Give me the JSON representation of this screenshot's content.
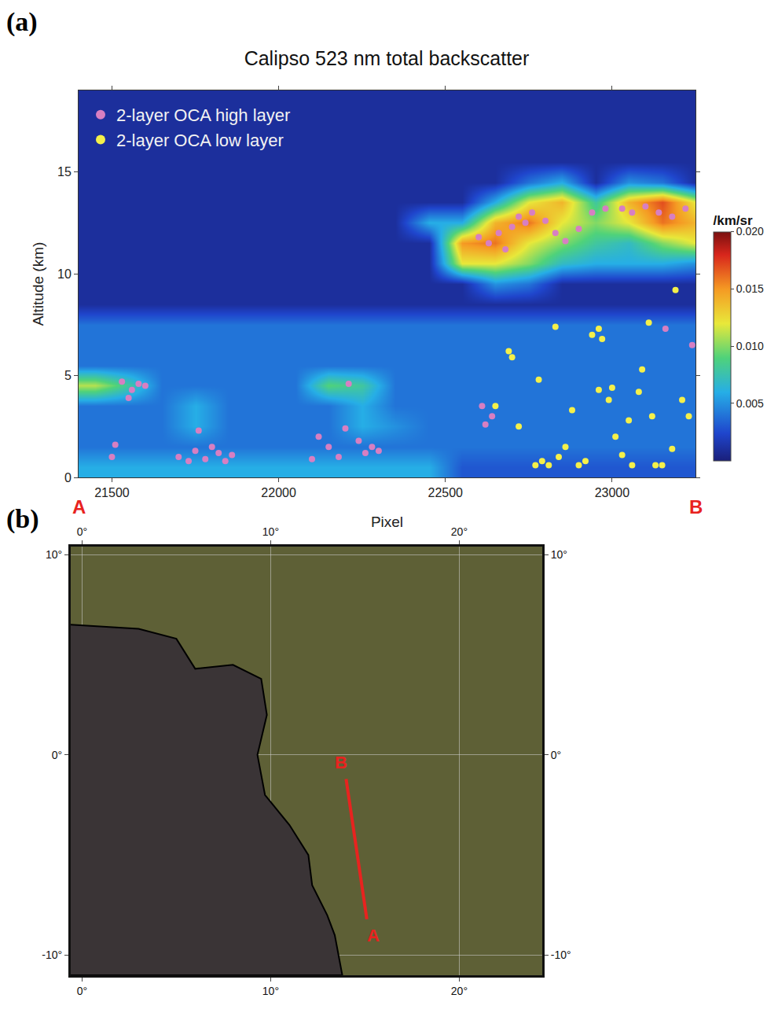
{
  "chart_data": [
    {
      "type": "heatmap",
      "panel": "(a)",
      "title": "Calipso 523 nm total backscatter",
      "xlabel": "Pixel",
      "ylabel": "Altitude (km)",
      "xlim": [
        21400,
        23250
      ],
      "xticks": [
        21500,
        22000,
        22500,
        23000
      ],
      "ylim": [
        0,
        19
      ],
      "yticks": [
        0,
        5,
        10,
        15
      ],
      "x_end_labels": [
        "A",
        "B"
      ],
      "grid": false,
      "legend": "top left",
      "heatmap": {
        "x": [
          21450,
          21550,
          21650,
          21750,
          21850,
          21950,
          22050,
          22150,
          22250,
          22350,
          22450,
          22550,
          22650,
          22750,
          22850,
          22950,
          23050,
          23150,
          23250
        ],
        "y": [
          0.5,
          1.5,
          2.5,
          3.5,
          4.5,
          5.5,
          6.5,
          7.5,
          8.5,
          9.5,
          10.5,
          11.5,
          12.5,
          13.5,
          14.5,
          15.5,
          16.5,
          17.5,
          18.5
        ],
        "z": [
          [
            0.006,
            0.006,
            0.006,
            0.006,
            0.006,
            0.006,
            0.006,
            0.006,
            0.006,
            0.006,
            0.006,
            0.003,
            0.003,
            0.003,
            0.003,
            0.003,
            0.003,
            0.003,
            0.003
          ],
          [
            0.004,
            0.004,
            0.004,
            0.004,
            0.004,
            0.004,
            0.004,
            0.004,
            0.004,
            0.004,
            0.004,
            0.004,
            0.004,
            0.004,
            0.004,
            0.004,
            0.004,
            0.004,
            0.004
          ],
          [
            0.004,
            0.004,
            0.004,
            0.006,
            0.004,
            0.004,
            0.004,
            0.004,
            0.006,
            0.005,
            0.004,
            0.004,
            0.004,
            0.004,
            0.004,
            0.004,
            0.004,
            0.004,
            0.004
          ],
          [
            0.004,
            0.004,
            0.004,
            0.006,
            0.004,
            0.004,
            0.004,
            0.004,
            0.006,
            0.004,
            0.004,
            0.004,
            0.004,
            0.004,
            0.004,
            0.004,
            0.004,
            0.004,
            0.004
          ],
          [
            0.011,
            0.008,
            0.004,
            0.004,
            0.004,
            0.004,
            0.004,
            0.009,
            0.008,
            0.004,
            0.004,
            0.004,
            0.004,
            0.004,
            0.004,
            0.004,
            0.004,
            0.004,
            0.004
          ],
          [
            0.004,
            0.004,
            0.004,
            0.004,
            0.004,
            0.004,
            0.004,
            0.004,
            0.004,
            0.004,
            0.004,
            0.004,
            0.004,
            0.004,
            0.004,
            0.004,
            0.004,
            0.004,
            0.004
          ],
          [
            0.004,
            0.004,
            0.004,
            0.004,
            0.004,
            0.004,
            0.004,
            0.004,
            0.004,
            0.004,
            0.004,
            0.004,
            0.004,
            0.004,
            0.004,
            0.004,
            0.004,
            0.004,
            0.004
          ],
          [
            0.004,
            0.004,
            0.004,
            0.004,
            0.004,
            0.004,
            0.004,
            0.004,
            0.004,
            0.004,
            0.004,
            0.004,
            0.004,
            0.004,
            0.004,
            0.004,
            0.004,
            0.004,
            0.004
          ],
          [
            0.001,
            0.001,
            0.001,
            0.001,
            0.001,
            0.001,
            0.001,
            0.001,
            0.001,
            0.001,
            0.001,
            0.001,
            0.001,
            0.001,
            0.001,
            0.001,
            0.001,
            0.001,
            0.001
          ],
          [
            0.001,
            0.001,
            0.001,
            0.001,
            0.001,
            0.001,
            0.001,
            0.001,
            0.001,
            0.001,
            0.001,
            0.001,
            0.005,
            0.004,
            0.001,
            0.001,
            0.001,
            0.001,
            0.001
          ],
          [
            0.001,
            0.001,
            0.001,
            0.001,
            0.001,
            0.001,
            0.001,
            0.001,
            0.001,
            0.001,
            0.001,
            0.012,
            0.012,
            0.01,
            0.007,
            0.006,
            0.006,
            0.006,
            0.005
          ],
          [
            0.001,
            0.001,
            0.001,
            0.001,
            0.001,
            0.001,
            0.001,
            0.001,
            0.001,
            0.001,
            0.001,
            0.015,
            0.016,
            0.012,
            0.01,
            0.008,
            0.007,
            0.01,
            0.012
          ],
          [
            0.001,
            0.001,
            0.001,
            0.001,
            0.001,
            0.001,
            0.001,
            0.001,
            0.001,
            0.001,
            0.006,
            0.006,
            0.014,
            0.016,
            0.012,
            0.01,
            0.012,
            0.016,
            0.014
          ],
          [
            0.001,
            0.001,
            0.001,
            0.001,
            0.001,
            0.001,
            0.001,
            0.001,
            0.001,
            0.001,
            0.001,
            0.001,
            0.006,
            0.012,
            0.014,
            0.008,
            0.014,
            0.017,
            0.012
          ],
          [
            0.001,
            0.001,
            0.001,
            0.001,
            0.001,
            0.001,
            0.001,
            0.001,
            0.001,
            0.001,
            0.001,
            0.001,
            0.001,
            0.004,
            0.006,
            0.001,
            0.005,
            0.004,
            0.001
          ],
          [
            0.001,
            0.001,
            0.001,
            0.001,
            0.001,
            0.001,
            0.001,
            0.001,
            0.001,
            0.001,
            0.001,
            0.001,
            0.001,
            0.001,
            0.001,
            0.001,
            0.001,
            0.001,
            0.001
          ],
          [
            0.001,
            0.001,
            0.001,
            0.001,
            0.001,
            0.001,
            0.001,
            0.001,
            0.001,
            0.001,
            0.001,
            0.001,
            0.001,
            0.001,
            0.001,
            0.001,
            0.001,
            0.001,
            0.001
          ],
          [
            0.001,
            0.001,
            0.001,
            0.001,
            0.001,
            0.001,
            0.001,
            0.001,
            0.001,
            0.001,
            0.001,
            0.001,
            0.001,
            0.001,
            0.001,
            0.001,
            0.001,
            0.001,
            0.001
          ],
          [
            0.001,
            0.001,
            0.001,
            0.001,
            0.001,
            0.001,
            0.001,
            0.001,
            0.001,
            0.001,
            0.001,
            0.001,
            0.001,
            0.001,
            0.001,
            0.001,
            0.001,
            0.001,
            0.001
          ]
        ]
      },
      "colorbar": {
        "title": "/km/sr",
        "range": [
          0,
          0.02
        ],
        "ticks": [
          0.005,
          {
            "value": 0.01,
            "label": "0.010"
          },
          0.015,
          {
            "value": 0.02,
            "label": "0.020"
          }
        ]
      },
      "series": [
        {
          "name": "2-layer OCA high layer",
          "color": "#d77fc2",
          "type": "scatter",
          "marker": "circle",
          "x": [
            21500,
            21510,
            21530,
            21550,
            21560,
            21580,
            21600,
            21700,
            21730,
            21750,
            21760,
            21780,
            21800,
            21820,
            21840,
            21860,
            22100,
            22120,
            22150,
            22180,
            22200,
            22210,
            22240,
            22260,
            22280,
            22300,
            22610,
            22620,
            22640,
            22600,
            22630,
            22660,
            22680,
            22700,
            22720,
            22740,
            22760,
            22800,
            22830,
            22860,
            22900,
            22940,
            22980,
            23030,
            23060,
            23100,
            23140,
            23160,
            23180,
            23220,
            23240
          ],
          "y": [
            1.0,
            1.6,
            4.7,
            3.9,
            4.3,
            4.6,
            4.5,
            1.0,
            0.8,
            1.3,
            2.3,
            0.9,
            1.5,
            1.2,
            0.8,
            1.1,
            0.9,
            2.0,
            1.5,
            1.0,
            2.4,
            4.6,
            1.8,
            1.2,
            1.5,
            1.3,
            3.5,
            2.6,
            3.0,
            11.8,
            11.5,
            12.0,
            11.2,
            12.3,
            12.8,
            12.5,
            13.0,
            12.6,
            12.0,
            11.6,
            12.2,
            13.0,
            13.2,
            13.2,
            13.0,
            13.3,
            13.0,
            7.3,
            12.8,
            13.2,
            6.5
          ]
        },
        {
          "name": "2-layer OCA low layer",
          "color": "#f4f04a",
          "type": "scatter",
          "marker": "circle",
          "x": [
            22650,
            22690,
            22700,
            22720,
            22770,
            22780,
            22790,
            22810,
            22830,
            22840,
            22860,
            22880,
            22900,
            22920,
            22940,
            22960,
            22960,
            22970,
            22990,
            23000,
            23010,
            23030,
            23050,
            23060,
            23080,
            23090,
            23110,
            23120,
            23130,
            23150,
            23180,
            23190,
            23210,
            23230
          ],
          "y": [
            3.5,
            6.2,
            5.9,
            2.5,
            0.6,
            4.8,
            0.8,
            0.6,
            7.4,
            1.0,
            1.5,
            3.3,
            0.6,
            0.8,
            7.0,
            4.3,
            7.3,
            6.8,
            3.8,
            4.4,
            2.0,
            1.1,
            2.8,
            0.6,
            4.2,
            5.3,
            7.6,
            3.0,
            0.6,
            0.6,
            1.4,
            9.2,
            3.8,
            3.0
          ]
        }
      ]
    },
    {
      "type": "map",
      "panel": "(b)",
      "xlim": [
        -0.6,
        24.4
      ],
      "xticks": [
        {
          "value": 0,
          "label": "0°"
        },
        {
          "value": 10,
          "label": "10°"
        },
        {
          "value": 20,
          "label": "20°"
        }
      ],
      "ylim": [
        -11,
        10.4
      ],
      "yticks": [
        {
          "value": 10,
          "label": "10°"
        },
        {
          "value": 0,
          "label": "0°"
        },
        {
          "value": -10,
          "label": "-10°"
        }
      ],
      "grid": true,
      "color": "#5e6036",
      "coastline": {
        "color": "#3a3436",
        "lon": [
          -0.6,
          3,
          5,
          6,
          8,
          9.5,
          9.8,
          9.3,
          9.7,
          11,
          12,
          12.2,
          13,
          13.4,
          13.8,
          -0.6
        ],
        "lat": [
          6.5,
          6.3,
          5.8,
          4.3,
          4.5,
          3.8,
          2,
          0,
          -2,
          -3.5,
          -5,
          -6.5,
          -8,
          -9,
          -11,
          -11
        ]
      },
      "track": {
        "color": "#e8231f",
        "lon": [
          14.0,
          15.1
        ],
        "lat": [
          -1.2,
          -8.2
        ],
        "labels": [
          "B",
          "A"
        ]
      }
    }
  ]
}
